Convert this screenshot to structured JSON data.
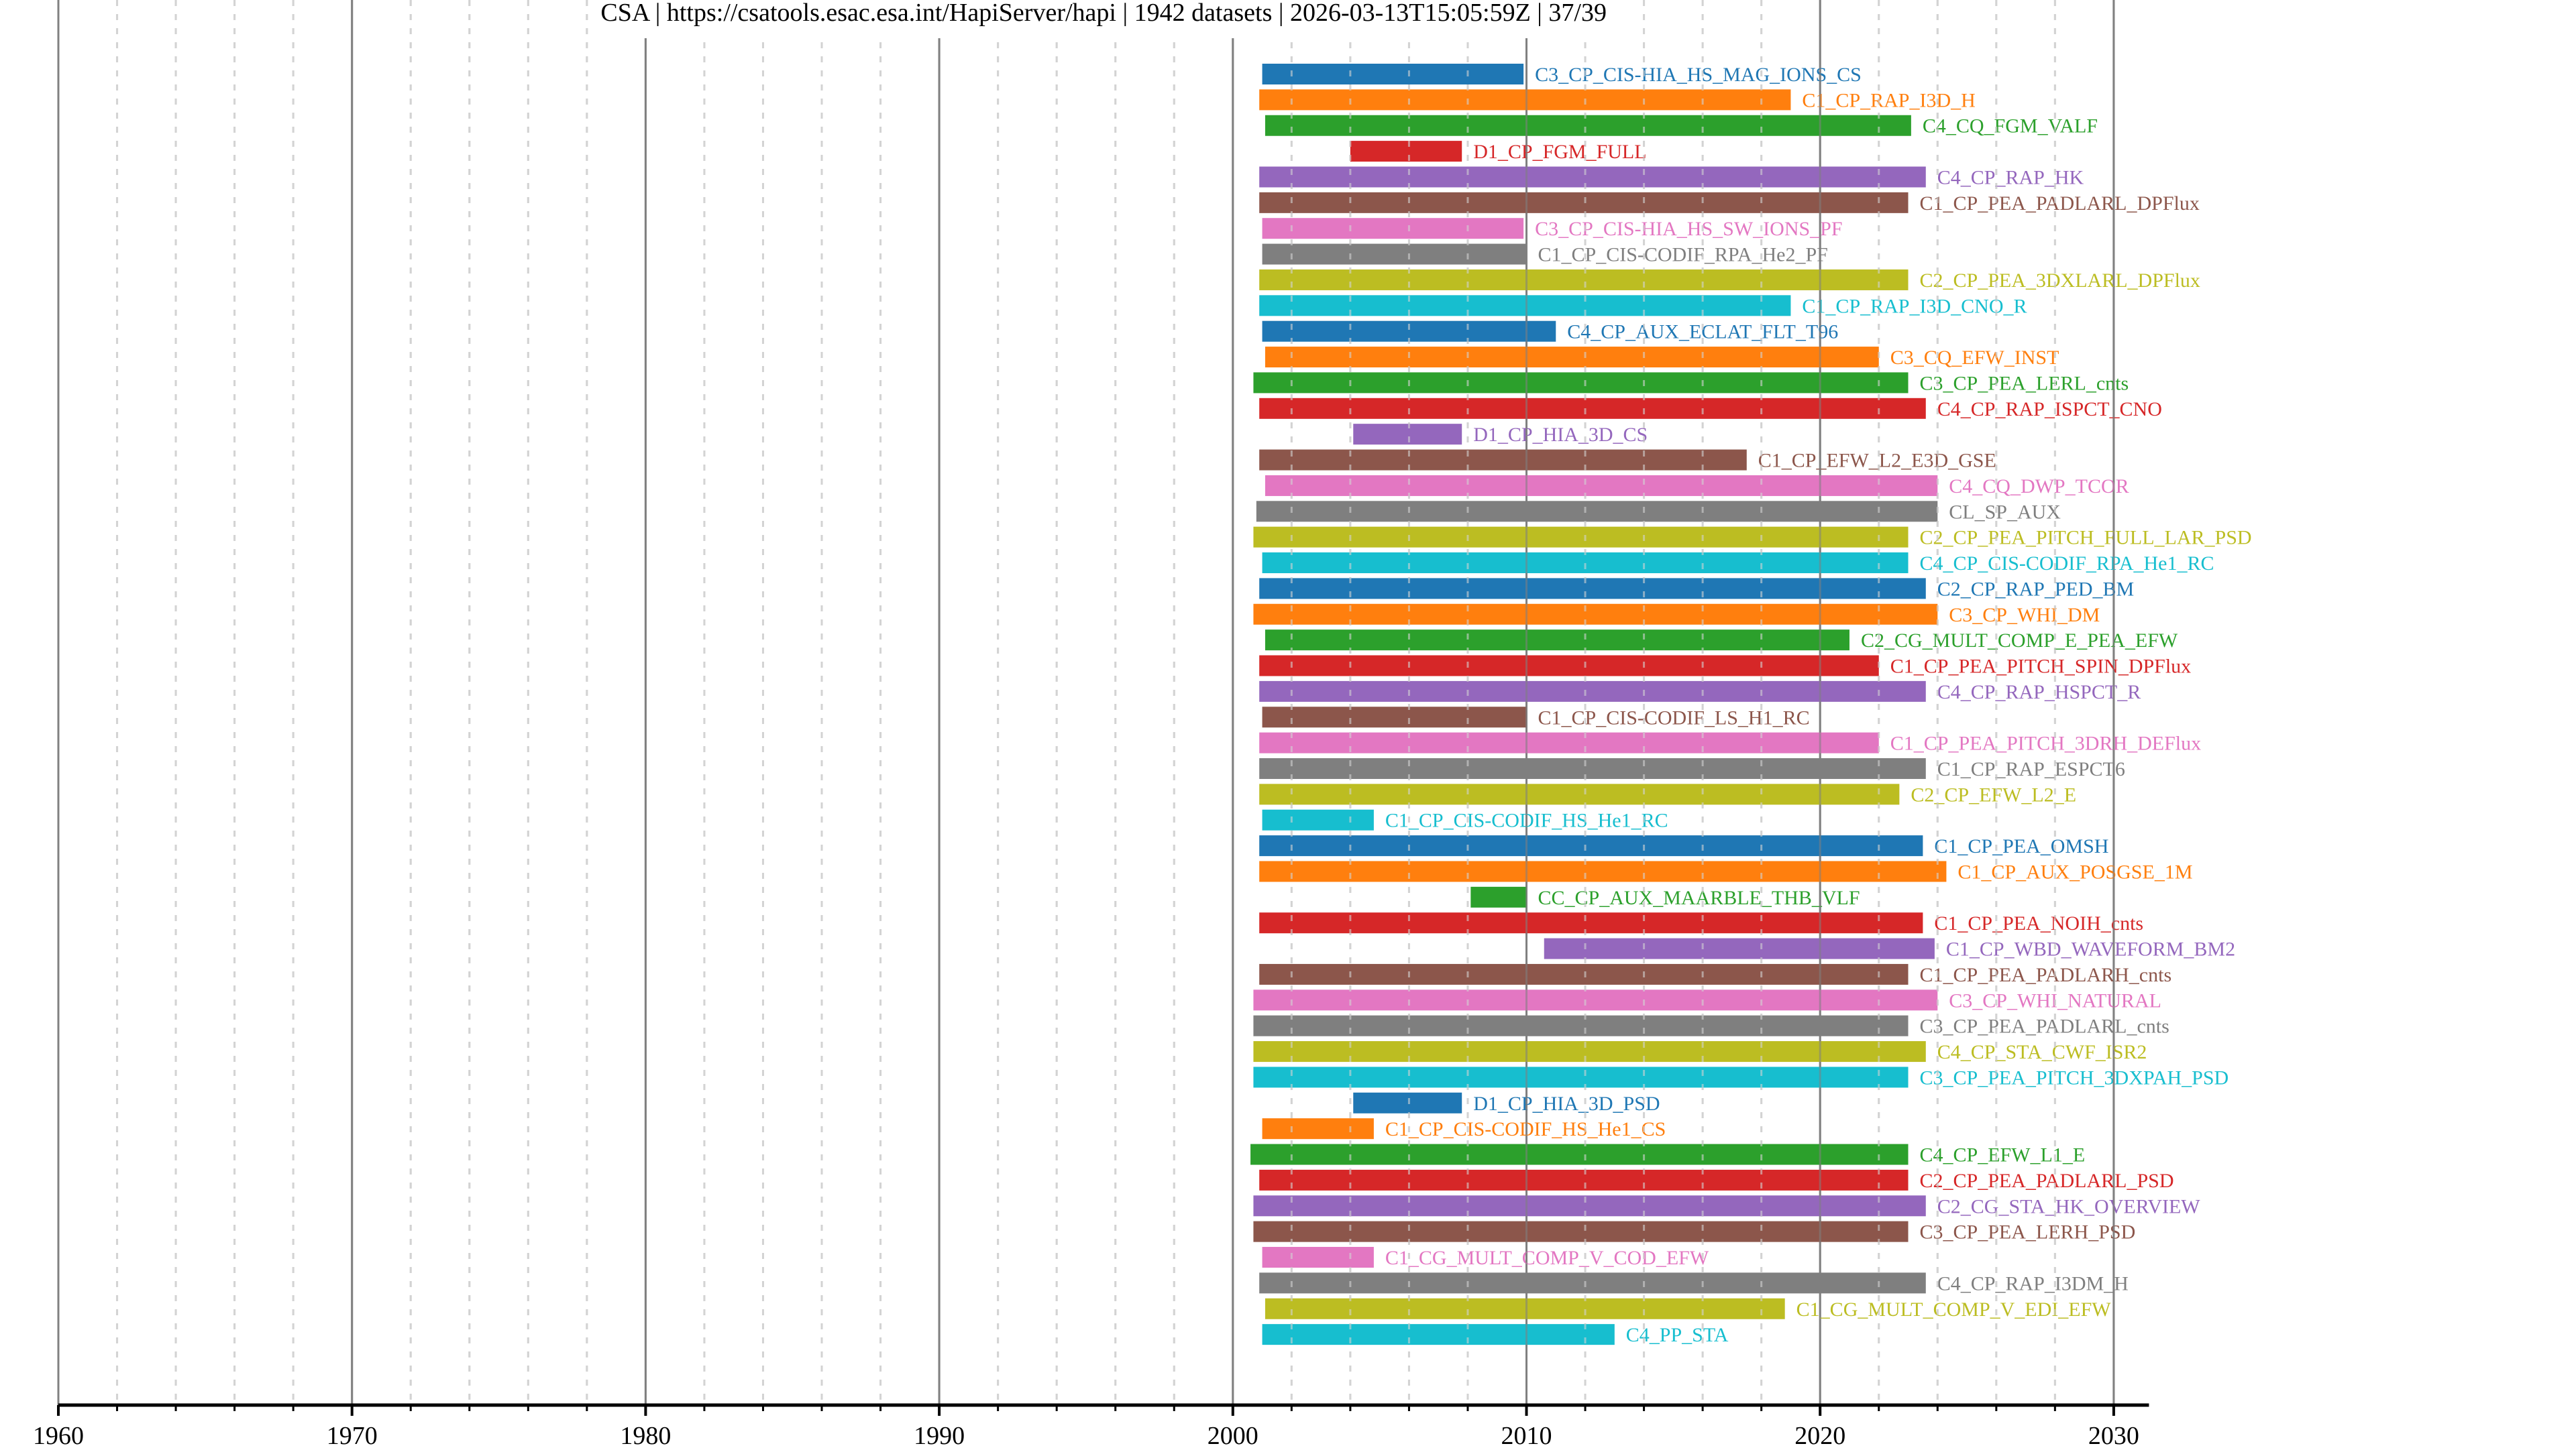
{
  "chart_data": {
    "type": "bar",
    "orientation": "horizontal-timeline",
    "title": "CSA | https://csatools.esac.esa.int/HapiServer/hapi | 1942 datasets | 2026-03-13T15:05:59Z | 37/39",
    "xlabel": "",
    "ylabel": "",
    "xlim": [
      1960,
      2031.2
    ],
    "x_ticks": [
      1960,
      1970,
      1980,
      1990,
      2000,
      2010,
      2020,
      2030
    ],
    "x_tick_labels": [
      "1960",
      "1970",
      "1980",
      "1990",
      "2000",
      "2010",
      "2020",
      "2030"
    ],
    "x_minor_tick_step": 2,
    "grid": true,
    "legend": "none (labels placed at right end of each bar)",
    "palette": [
      "#1f77b4",
      "#ff7f0e",
      "#2ca02c",
      "#d62728",
      "#9467bd",
      "#8c564b",
      "#e377c2",
      "#7f7f7f",
      "#bcbd22",
      "#17becf"
    ],
    "series": [
      {
        "name": "C3_CP_CIS-HIA_HS_MAG_IONS_CS",
        "start": 2001.0,
        "end": 2009.9
      },
      {
        "name": "C1_CP_RAP_I3D_H",
        "start": 2000.9,
        "end": 2019.0
      },
      {
        "name": "C4_CQ_FGM_VALF",
        "start": 2001.1,
        "end": 2023.1
      },
      {
        "name": "D1_CP_FGM_FULL",
        "start": 2004.0,
        "end": 2007.8
      },
      {
        "name": "C4_CP_RAP_HK",
        "start": 2000.9,
        "end": 2023.6
      },
      {
        "name": "C1_CP_PEA_PADLARL_DPFlux",
        "start": 2000.9,
        "end": 2023.0
      },
      {
        "name": "C3_CP_CIS-HIA_HS_SW_IONS_PF",
        "start": 2001.0,
        "end": 2009.9
      },
      {
        "name": "C1_CP_CIS-CODIF_RPA_He2_PF",
        "start": 2001.0,
        "end": 2010.0
      },
      {
        "name": "C2_CP_PEA_3DXLARL_DPFlux",
        "start": 2000.9,
        "end": 2023.0
      },
      {
        "name": "C1_CP_RAP_I3D_CNO_R",
        "start": 2000.9,
        "end": 2019.0
      },
      {
        "name": "C4_CP_AUX_ECLAT_FLT_T96",
        "start": 2001.0,
        "end": 2011.0
      },
      {
        "name": "C3_CQ_EFW_INST",
        "start": 2001.1,
        "end": 2022.0
      },
      {
        "name": "C3_CP_PEA_LERL_cnts",
        "start": 2000.7,
        "end": 2023.0
      },
      {
        "name": "C4_CP_RAP_ISPCT_CNO",
        "start": 2000.9,
        "end": 2023.6
      },
      {
        "name": "D1_CP_HIA_3D_CS",
        "start": 2004.1,
        "end": 2007.8
      },
      {
        "name": "C1_CP_EFW_L2_E3D_GSE",
        "start": 2000.9,
        "end": 2017.5
      },
      {
        "name": "C4_CQ_DWP_TCOR",
        "start": 2001.1,
        "end": 2024.0
      },
      {
        "name": "CL_SP_AUX",
        "start": 2000.8,
        "end": 2024.0
      },
      {
        "name": "C2_CP_PEA_PITCH_FULL_LAR_PSD",
        "start": 2000.7,
        "end": 2023.0
      },
      {
        "name": "C4_CP_CIS-CODIF_RPA_He1_RC",
        "start": 2001.0,
        "end": 2023.0
      },
      {
        "name": "C2_CP_RAP_PED_BM",
        "start": 2000.9,
        "end": 2023.6
      },
      {
        "name": "C3_CP_WHI_DM",
        "start": 2000.7,
        "end": 2024.0
      },
      {
        "name": "C2_CG_MULT_COMP_E_PEA_EFW",
        "start": 2001.1,
        "end": 2021.0
      },
      {
        "name": "C1_CP_PEA_PITCH_SPIN_DPFlux",
        "start": 2000.9,
        "end": 2022.0
      },
      {
        "name": "C4_CP_RAP_HSPCT_R",
        "start": 2000.9,
        "end": 2023.6
      },
      {
        "name": "C1_CP_CIS-CODIF_LS_H1_RC",
        "start": 2001.0,
        "end": 2010.0
      },
      {
        "name": "C1_CP_PEA_PITCH_3DRH_DEFlux",
        "start": 2000.9,
        "end": 2022.0
      },
      {
        "name": "C1_CP_RAP_ESPCT6",
        "start": 2000.9,
        "end": 2023.6
      },
      {
        "name": "C2_CP_EFW_L2_E",
        "start": 2000.9,
        "end": 2022.7
      },
      {
        "name": "C1_CP_CIS-CODIF_HS_He1_RC",
        "start": 2001.0,
        "end": 2004.8
      },
      {
        "name": "C1_CP_PEA_OMSH",
        "start": 2000.9,
        "end": 2023.5
      },
      {
        "name": "C1_CP_AUX_POSGSE_1M",
        "start": 2000.9,
        "end": 2024.3
      },
      {
        "name": "CC_CP_AUX_MAARBLE_THB_VLF",
        "start": 2008.1,
        "end": 2010.0
      },
      {
        "name": "C1_CP_PEA_NOIH_cnts",
        "start": 2000.9,
        "end": 2023.5
      },
      {
        "name": "C1_CP_WBD_WAVEFORM_BM2",
        "start": 2010.6,
        "end": 2023.9
      },
      {
        "name": "C1_CP_PEA_PADLARH_cnts",
        "start": 2000.9,
        "end": 2023.0
      },
      {
        "name": "C3_CP_WHI_NATURAL",
        "start": 2000.7,
        "end": 2024.0
      },
      {
        "name": "C3_CP_PEA_PADLARL_cnts",
        "start": 2000.7,
        "end": 2023.0
      },
      {
        "name": "C4_CP_STA_CWF_ISR2",
        "start": 2000.7,
        "end": 2023.6
      },
      {
        "name": "C3_CP_PEA_PITCH_3DXPAH_PSD",
        "start": 2000.7,
        "end": 2023.0
      },
      {
        "name": "D1_CP_HIA_3D_PSD",
        "start": 2004.1,
        "end": 2007.8
      },
      {
        "name": "C1_CP_CIS-CODIF_HS_He1_CS",
        "start": 2001.0,
        "end": 2004.8
      },
      {
        "name": "C4_CP_EFW_L1_E",
        "start": 2000.6,
        "end": 2023.0
      },
      {
        "name": "C2_CP_PEA_PADLARL_PSD",
        "start": 2000.9,
        "end": 2023.0
      },
      {
        "name": "C2_CG_STA_HK_OVERVIEW",
        "start": 2000.7,
        "end": 2023.6
      },
      {
        "name": "C3_CP_PEA_LERH_PSD",
        "start": 2000.7,
        "end": 2023.0
      },
      {
        "name": "C1_CG_MULT_COMP_V_COD_EFW",
        "start": 2001.0,
        "end": 2004.8
      },
      {
        "name": "C4_CP_RAP_I3DM_H",
        "start": 2000.9,
        "end": 2023.6
      },
      {
        "name": "C1_CG_MULT_COMP_V_EDI_EFW",
        "start": 2001.1,
        "end": 2018.8
      },
      {
        "name": "C4_PP_STA",
        "start": 2001.0,
        "end": 2013.0
      }
    ]
  }
}
